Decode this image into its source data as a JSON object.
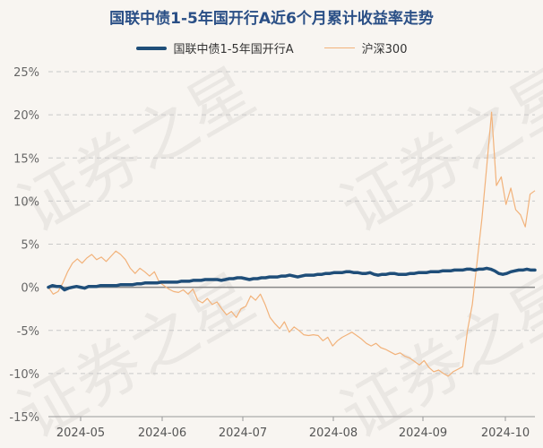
{
  "chart_data": {
    "type": "line",
    "title": "国联中债1-5年国开行A近6个月累计收益率走势",
    "legend": [
      "国联中债1-5年国开行A",
      "沪深300"
    ],
    "legend_position": "top",
    "watermark": "证券之星",
    "ylim": [
      -15,
      25
    ],
    "y_ticks": [
      "25%",
      "20%",
      "15%",
      "10%",
      "5%",
      "0%",
      "-5%",
      "-10%",
      "-15%"
    ],
    "x_ticks": [
      "2024-05",
      "2024-06",
      "2024-07",
      "2024-08",
      "2024-09",
      "2024-10"
    ],
    "grid": "horizontal",
    "colors": {
      "fund": "#1f4e79",
      "hs300": "#f2b27a",
      "zero_line": "#888888"
    },
    "series": [
      {
        "name": "国联中债1-5年国开行A",
        "values": [
          0.0,
          0.2,
          0.1,
          0.1,
          -0.3,
          -0.1,
          0.0,
          0.1,
          0.0,
          -0.1,
          0.1,
          0.1,
          0.1,
          0.2,
          0.2,
          0.2,
          0.2,
          0.2,
          0.3,
          0.3,
          0.3,
          0.3,
          0.4,
          0.4,
          0.5,
          0.5,
          0.5,
          0.5,
          0.6,
          0.6,
          0.6,
          0.6,
          0.6,
          0.7,
          0.7,
          0.7,
          0.8,
          0.8,
          0.8,
          0.9,
          0.9,
          0.9,
          0.9,
          0.8,
          0.9,
          1.0,
          1.0,
          1.1,
          1.1,
          1.0,
          0.9,
          1.0,
          1.0,
          1.1,
          1.1,
          1.2,
          1.2,
          1.2,
          1.3,
          1.3,
          1.4,
          1.3,
          1.2,
          1.3,
          1.4,
          1.4,
          1.4,
          1.5,
          1.5,
          1.6,
          1.6,
          1.7,
          1.7,
          1.7,
          1.8,
          1.8,
          1.7,
          1.7,
          1.6,
          1.6,
          1.7,
          1.5,
          1.4,
          1.5,
          1.5,
          1.6,
          1.6,
          1.5,
          1.5,
          1.5,
          1.6,
          1.6,
          1.7,
          1.7,
          1.7,
          1.8,
          1.8,
          1.8,
          1.9,
          1.9,
          1.9,
          2.0,
          2.0,
          2.0,
          2.1,
          2.1,
          2.0,
          2.1,
          2.1,
          2.2,
          2.1,
          1.9,
          1.6,
          1.5,
          1.6,
          1.8,
          1.9,
          2.0,
          2.0,
          2.1,
          2.0,
          2.0
        ]
      },
      {
        "name": "沪深300",
        "values": [
          0.0,
          -0.8,
          -0.5,
          0.5,
          1.8,
          2.8,
          3.3,
          2.8,
          3.4,
          3.8,
          3.2,
          3.5,
          3.0,
          3.6,
          4.2,
          3.8,
          3.2,
          2.2,
          1.6,
          2.2,
          1.8,
          1.3,
          1.8,
          0.6,
          0.2,
          -0.2,
          -0.5,
          -0.6,
          -0.3,
          -0.8,
          -0.2,
          -1.5,
          -1.8,
          -1.3,
          -2.0,
          -1.7,
          -2.5,
          -3.2,
          -2.8,
          -3.5,
          -2.5,
          -2.2,
          -1.0,
          -1.5,
          -0.8,
          -2.0,
          -3.5,
          -4.2,
          -4.8,
          -4.0,
          -5.2,
          -4.6,
          -5.0,
          -5.5,
          -5.6,
          -5.5,
          -5.6,
          -6.2,
          -5.8,
          -6.8,
          -6.2,
          -5.8,
          -5.5,
          -5.2,
          -5.6,
          -6.0,
          -6.5,
          -6.8,
          -6.5,
          -7.0,
          -7.2,
          -7.5,
          -7.8,
          -7.6,
          -8.0,
          -8.2,
          -8.6,
          -9.0,
          -8.5,
          -9.3,
          -9.8,
          -9.6,
          -10.0,
          -10.3,
          -9.8,
          -9.5,
          -9.2,
          -5.0,
          -2.0,
          3.0,
          8.0,
          14.0,
          20.3,
          11.8,
          12.8,
          9.6,
          11.5,
          9.0,
          8.4,
          7.0,
          10.8,
          11.2
        ]
      }
    ]
  }
}
